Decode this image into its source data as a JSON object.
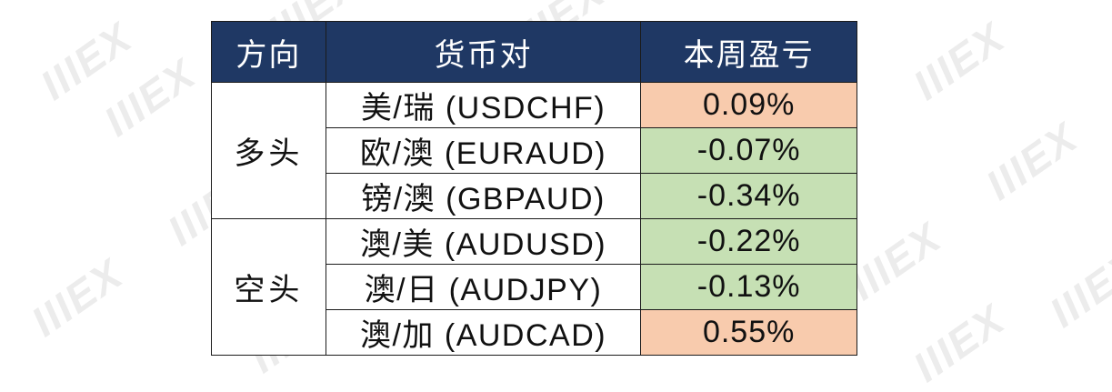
{
  "table": {
    "headers": [
      "方向",
      "货币对",
      "本周盈亏"
    ],
    "groups": [
      {
        "direction": "多头",
        "rows": [
          {
            "pair": "美/瑞 (USDCHF)",
            "pnl": "0.09%",
            "color": "#f8cbad"
          },
          {
            "pair": "欧/澳 (EURAUD)",
            "pnl": "-0.07%",
            "color": "#c6e0b4"
          },
          {
            "pair": "镑/澳 (GBPAUD)",
            "pnl": "-0.34%",
            "color": "#c6e0b4"
          }
        ]
      },
      {
        "direction": "空头",
        "rows": [
          {
            "pair": "澳/美 (AUDUSD)",
            "pnl": "-0.22%",
            "color": "#c6e0b4"
          },
          {
            "pair": "澳/日 (AUDJPY)",
            "pnl": "-0.13%",
            "color": "#c6e0b4"
          },
          {
            "pair": "澳/加 (AUDCAD)",
            "pnl": "0.55%",
            "color": "#f8cbad"
          }
        ]
      }
    ]
  },
  "watermark": {
    "logo_text": "IIIEX"
  },
  "colors": {
    "header_bg": "#1f3864",
    "header_text": "#ffffff",
    "gain": "#f8cbad",
    "loss": "#c6e0b4"
  }
}
